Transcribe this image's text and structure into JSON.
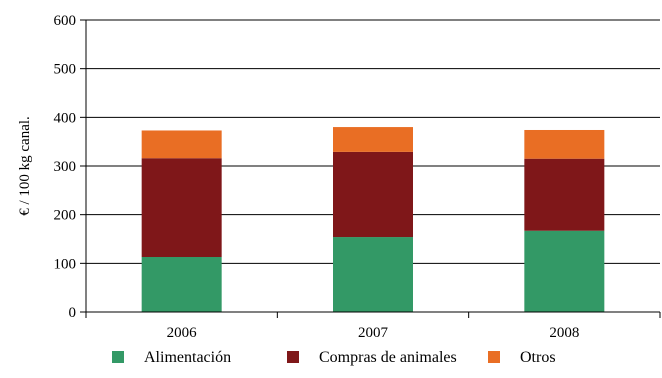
{
  "chart_data": {
    "type": "bar",
    "stacked": true,
    "categories": [
      "2006",
      "2007",
      "2008"
    ],
    "series": [
      {
        "name": "Alimentación",
        "color": "#339966",
        "values": [
          113,
          154,
          167
        ]
      },
      {
        "name": "Compras de animales",
        "color": "#7f1719",
        "values": [
          203,
          175,
          148
        ]
      },
      {
        "name": "Otros",
        "color": "#e96e24",
        "values": [
          57,
          51,
          59
        ]
      }
    ],
    "ylabel": "€ / 100 kg canal.",
    "ylim": [
      0,
      600
    ],
    "yticks": [
      0,
      100,
      200,
      300,
      400,
      500,
      600
    ],
    "grid": true,
    "legend": "bottom"
  }
}
